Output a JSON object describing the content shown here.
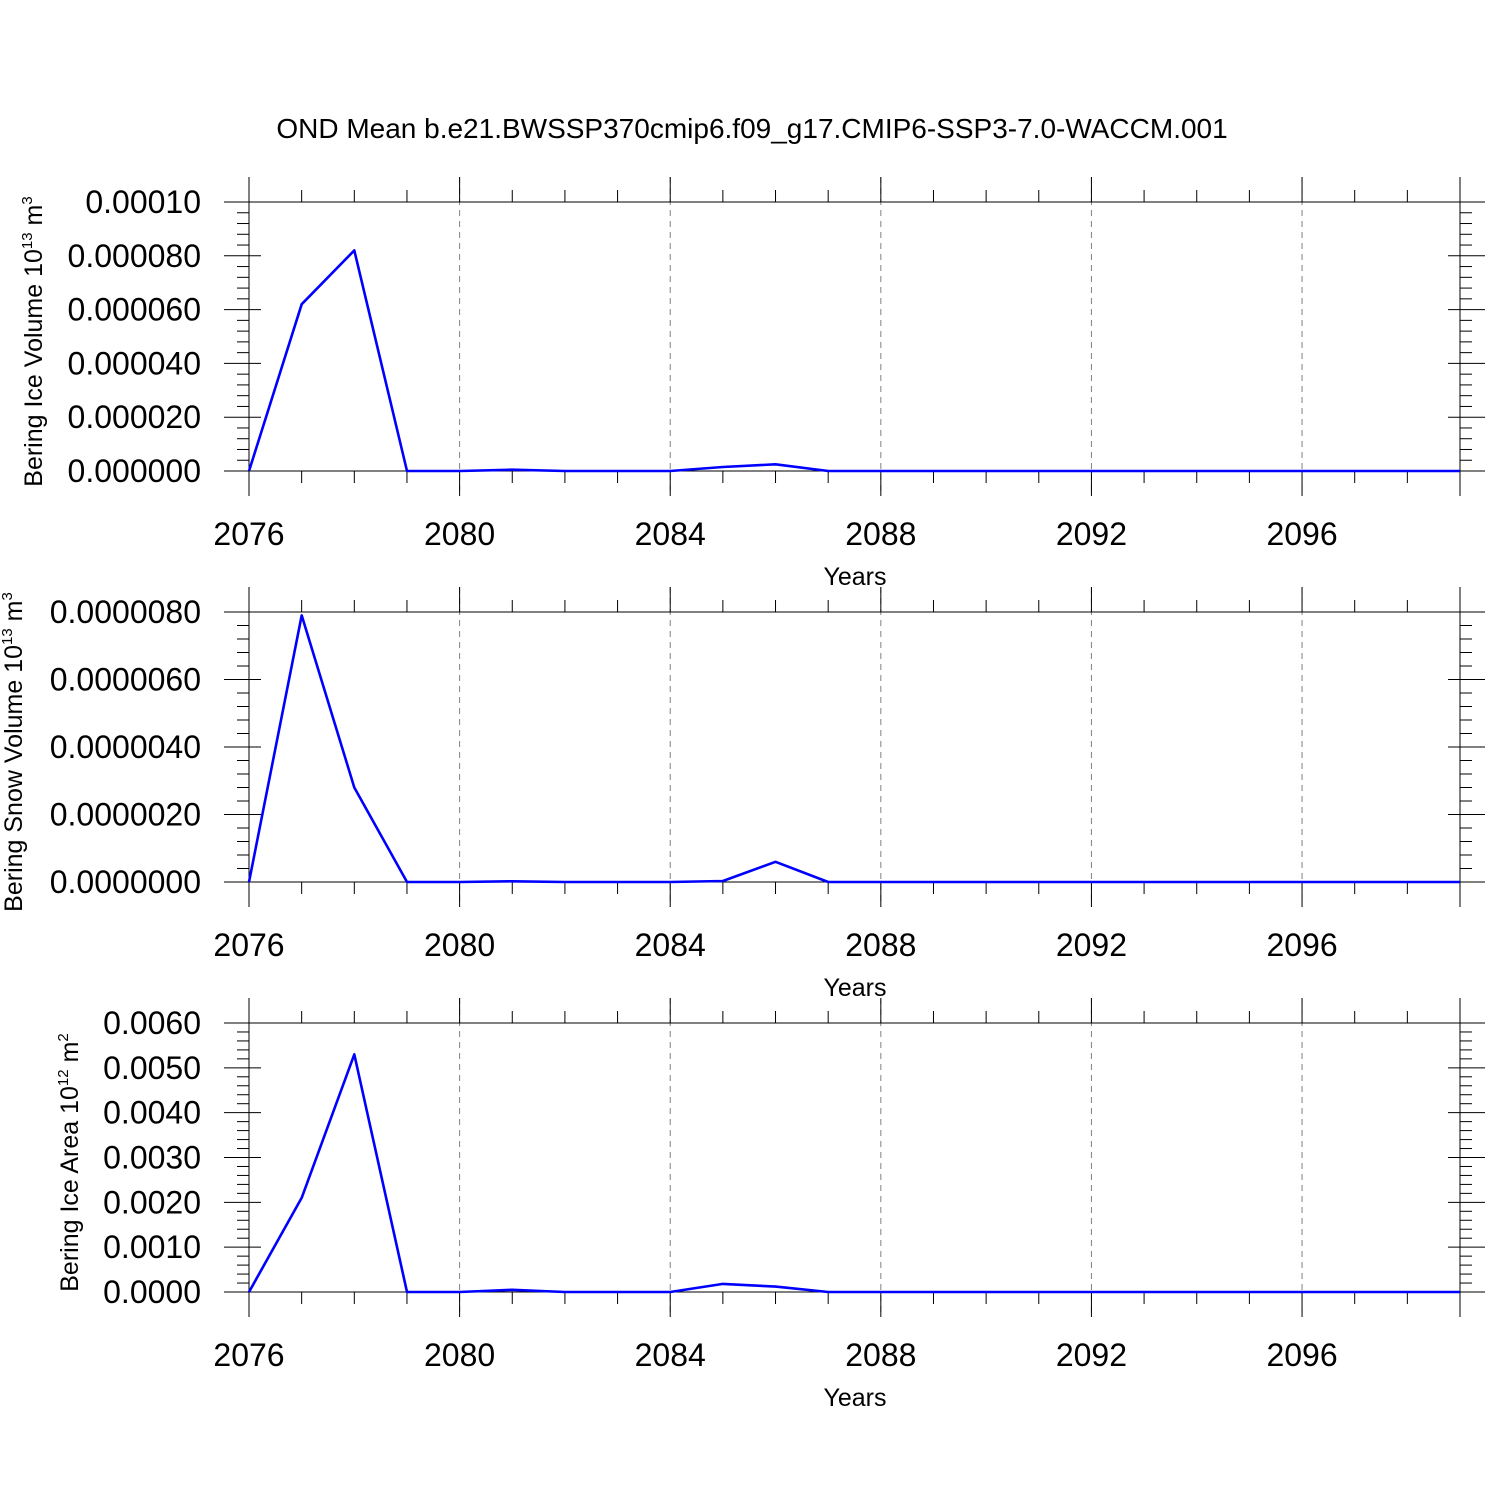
{
  "title": "OND Mean b.e21.BWSSP370cmip6.f09_g17.CMIP6-SSP3-7.0-WACCM.001",
  "colors": {
    "line": "#0000ff",
    "axis": "#000000",
    "grid": "#808080"
  },
  "chart_data": [
    {
      "type": "line",
      "xlabel": "Years",
      "ylabel": {
        "main": "Bering Ice Volume 10",
        "sup": "13",
        "unit": " m",
        "unit_sup": "3"
      },
      "xlim": [
        2076,
        2099
      ],
      "ylim": [
        0,
        0.0001
      ],
      "x_ticks": [
        2076,
        2080,
        2084,
        2088,
        2092,
        2096
      ],
      "x_tick_labels": [
        "2076",
        "2080",
        "2084",
        "2088",
        "2092",
        "2096"
      ],
      "y_ticks": [
        0,
        2e-05,
        4e-05,
        6e-05,
        8e-05,
        0.0001
      ],
      "y_tick_labels": [
        "0.000000",
        "0.000020",
        "0.000040",
        "0.000060",
        "0.000080",
        "0.00010"
      ],
      "grid": "vertical dashed at major x ticks",
      "series": [
        {
          "x": [
            2076,
            2077,
            2078,
            2079,
            2080,
            2081,
            2082,
            2083,
            2084,
            2085,
            2086,
            2087,
            2088,
            2089,
            2090,
            2091,
            2092,
            2093,
            2094,
            2095,
            2096,
            2097,
            2098,
            2099
          ],
          "values": [
            0,
            6.2e-05,
            8.2e-05,
            0,
            0,
            5e-07,
            0,
            0,
            0,
            1.5e-06,
            2.5e-06,
            0,
            0,
            0,
            0,
            0,
            0,
            0,
            0,
            0,
            0,
            0,
            0,
            0
          ]
        }
      ]
    },
    {
      "type": "line",
      "xlabel": "Years",
      "ylabel": {
        "main": "Bering Snow Volume 10",
        "sup": "13",
        "unit": " m",
        "unit_sup": "3"
      },
      "xlim": [
        2076,
        2099
      ],
      "ylim": [
        0,
        8e-06
      ],
      "x_ticks": [
        2076,
        2080,
        2084,
        2088,
        2092,
        2096
      ],
      "x_tick_labels": [
        "2076",
        "2080",
        "2084",
        "2088",
        "2092",
        "2096"
      ],
      "y_ticks": [
        0,
        2e-06,
        4e-06,
        6e-06,
        8e-06
      ],
      "y_tick_labels": [
        "0.0000000",
        "0.0000020",
        "0.0000040",
        "0.0000060",
        "0.0000080"
      ],
      "grid": "vertical dashed at major x ticks",
      "series": [
        {
          "x": [
            2076,
            2077,
            2078,
            2079,
            2080,
            2081,
            2082,
            2083,
            2084,
            2085,
            2086,
            2087,
            2088,
            2089,
            2090,
            2091,
            2092,
            2093,
            2094,
            2095,
            2096,
            2097,
            2098,
            2099
          ],
          "values": [
            0,
            7.9e-06,
            2.8e-06,
            0,
            0,
            2e-08,
            0,
            0,
            0,
            3e-08,
            6e-07,
            0,
            0,
            0,
            0,
            0,
            0,
            0,
            0,
            0,
            0,
            0,
            0,
            0
          ]
        }
      ]
    },
    {
      "type": "line",
      "xlabel": "Years",
      "ylabel": {
        "main": "Bering Ice Area 10",
        "sup": "12",
        "unit": " m",
        "unit_sup": "2"
      },
      "xlim": [
        2076,
        2099
      ],
      "ylim": [
        0,
        0.006
      ],
      "x_ticks": [
        2076,
        2080,
        2084,
        2088,
        2092,
        2096
      ],
      "x_tick_labels": [
        "2076",
        "2080",
        "2084",
        "2088",
        "2092",
        "2096"
      ],
      "y_ticks": [
        0,
        0.001,
        0.002,
        0.003,
        0.004,
        0.005,
        0.006
      ],
      "y_tick_labels": [
        "0.0000",
        "0.0010",
        "0.0020",
        "0.0030",
        "0.0040",
        "0.0050",
        "0.0060"
      ],
      "grid": "vertical dashed at major x ticks",
      "series": [
        {
          "x": [
            2076,
            2077,
            2078,
            2079,
            2080,
            2081,
            2082,
            2083,
            2084,
            2085,
            2086,
            2087,
            2088,
            2089,
            2090,
            2091,
            2092,
            2093,
            2094,
            2095,
            2096,
            2097,
            2098,
            2099
          ],
          "values": [
            0,
            0.0021,
            0.0053,
            0,
            0,
            5e-05,
            0,
            0,
            0,
            0.00018,
            0.00012,
            0,
            0,
            0,
            0,
            0,
            0,
            0,
            0,
            0,
            0,
            0,
            0,
            0
          ]
        }
      ]
    }
  ]
}
